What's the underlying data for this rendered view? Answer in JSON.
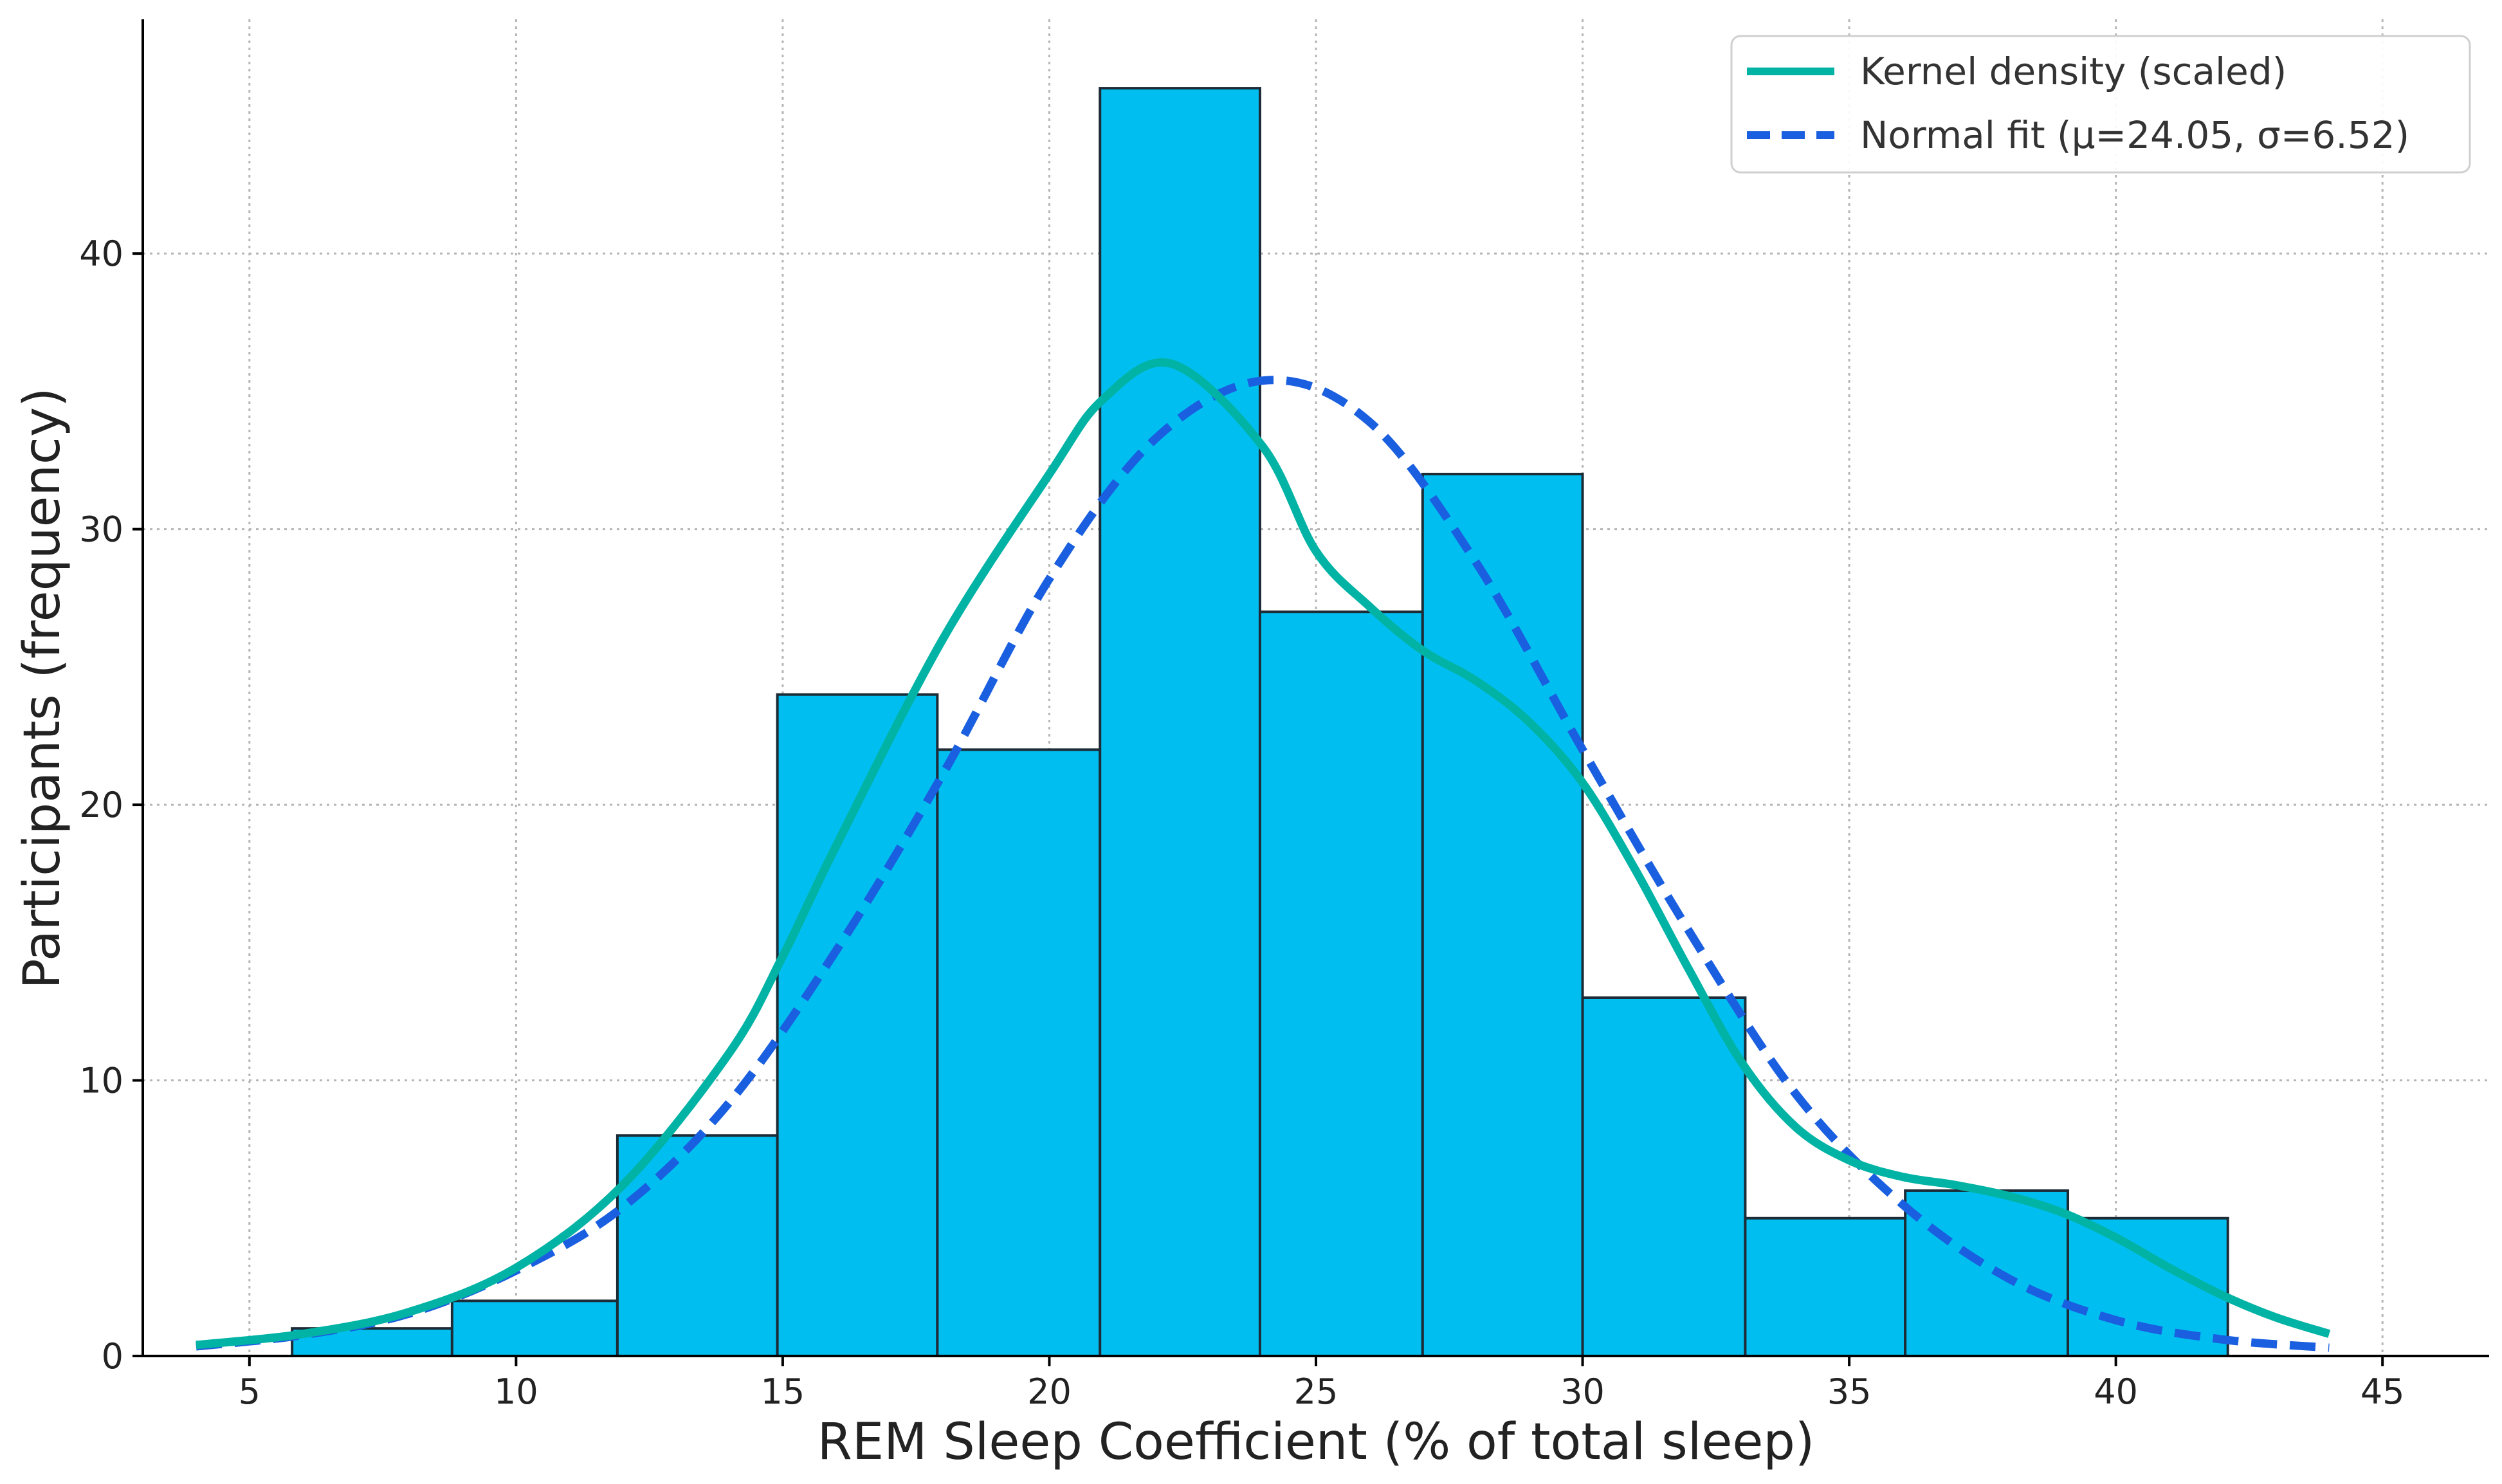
{
  "chart_data": {
    "type": "histogram",
    "title": "",
    "xlabel": "REM Sleep Coefficient (% of total sleep)",
    "ylabel": "Participants (frequency)",
    "xlim": [
      3,
      47
    ],
    "ylim": [
      0,
      48.5
    ],
    "xticks": [
      5,
      10,
      15,
      20,
      25,
      30,
      35,
      40,
      45
    ],
    "yticks": [
      0,
      10,
      20,
      30,
      40
    ],
    "grid": true,
    "bins": [
      {
        "start": 5.8,
        "end": 8.8,
        "count": 1
      },
      {
        "start": 8.8,
        "end": 11.9,
        "count": 2
      },
      {
        "start": 11.9,
        "end": 14.9,
        "count": 8
      },
      {
        "start": 14.9,
        "end": 17.9,
        "count": 24
      },
      {
        "start": 17.9,
        "end": 20.95,
        "count": 22
      },
      {
        "start": 20.95,
        "end": 23.95,
        "count": 46
      },
      {
        "start": 23.95,
        "end": 27.0,
        "count": 27
      },
      {
        "start": 27.0,
        "end": 30.0,
        "count": 32
      },
      {
        "start": 30.0,
        "end": 33.05,
        "count": 13
      },
      {
        "start": 33.05,
        "end": 36.05,
        "count": 5
      },
      {
        "start": 36.05,
        "end": 39.1,
        "count": 6
      },
      {
        "start": 39.1,
        "end": 42.1,
        "count": 5
      }
    ],
    "series": [
      {
        "name": "Kernel density (scaled)",
        "style": "solid",
        "color": "#00b3a4",
        "x": [
          4,
          6,
          8,
          10,
          12,
          14,
          15,
          16,
          18,
          20,
          21,
          22.3,
          24,
          25,
          26,
          27,
          28,
          29,
          30,
          31,
          32,
          33,
          34,
          35,
          36,
          37,
          38,
          39,
          40,
          41,
          42,
          43,
          44
        ],
        "y": [
          0.4,
          0.8,
          1.6,
          3.2,
          6.2,
          11.0,
          14.5,
          18.5,
          26.0,
          32.0,
          34.7,
          36.0,
          33.0,
          29.2,
          27.2,
          25.6,
          24.5,
          23.0,
          20.8,
          17.6,
          14.0,
          10.6,
          8.3,
          7.1,
          6.5,
          6.2,
          5.8,
          5.2,
          4.3,
          3.2,
          2.2,
          1.4,
          0.8
        ]
      },
      {
        "name": "Normal fit (μ=24.05, σ=6.52)",
        "style": "dashed",
        "color": "#1a5fe0",
        "x": [
          4,
          6,
          8,
          10,
          12,
          14,
          16,
          18,
          20,
          22,
          24.05,
          26,
          28,
          30,
          32,
          34,
          36,
          38,
          40,
          42,
          44
        ],
        "y": [
          0.35,
          0.76,
          1.54,
          3.1,
          5.4,
          9.2,
          14.7,
          21.1,
          28.2,
          33.3,
          35.4,
          33.9,
          28.8,
          22.0,
          15.4,
          9.5,
          5.5,
          2.8,
          1.3,
          0.6,
          0.3
        ]
      }
    ],
    "legend": {
      "position": "top-right",
      "entries": [
        "Kernel density (scaled)",
        "Normal fit (μ=24.05, σ=6.52)"
      ]
    }
  },
  "colors": {
    "bar_fill": "#00bff0",
    "bar_edge": "#1d2b36",
    "grid": "#b5b5b5"
  }
}
